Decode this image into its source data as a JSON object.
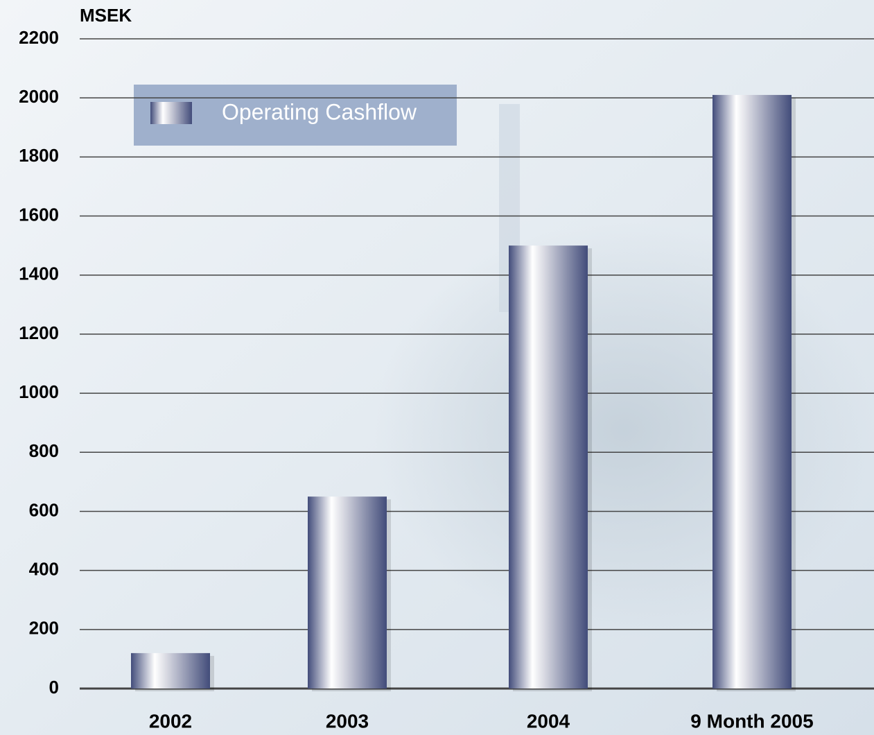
{
  "chart_data": {
    "type": "bar",
    "y_label": "MSEK",
    "categories": [
      "2002",
      "2003",
      "2004",
      "9 Month 2005"
    ],
    "series": [
      {
        "name": "Operating Cashflow",
        "color": "#424c7a",
        "values": [
          120,
          650,
          1500,
          2010
        ]
      }
    ],
    "ylim": [
      0,
      2200
    ],
    "yticks": [
      0,
      200,
      400,
      600,
      800,
      1000,
      1200,
      1400,
      1600,
      1800,
      2000,
      2200
    ],
    "grid": true
  }
}
